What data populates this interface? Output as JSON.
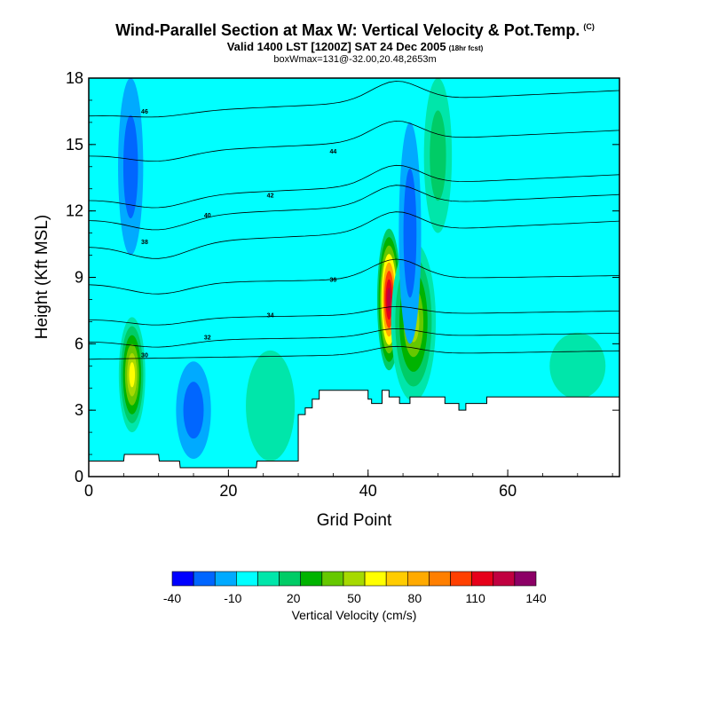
{
  "header": {
    "title": "Wind-Parallel Section at Max W: Vertical Velocity & Pot.Temp.",
    "copyright": "(C)",
    "subtitle": "Valid 1400 LST [1200Z] SAT 24 Dec 2005",
    "forecast_note": "(18hr fcst)",
    "box_info": "boxWmax=131@-32.00,20.48,2653m"
  },
  "colors": {
    "terrain": "#ffffff",
    "contour_line": "#000000",
    "frame": "#000000"
  },
  "chart_data": {
    "type": "heatmap",
    "title": "Wind-Parallel Section at Max W: Vertical Velocity & Pot.Temp.",
    "xlabel": "Grid Point",
    "ylabel": "Height (Kft MSL)",
    "xlim": [
      0,
      76
    ],
    "ylim": [
      0,
      18
    ],
    "x_ticks": [
      0,
      20,
      40,
      60
    ],
    "y_ticks": [
      0,
      3,
      6,
      9,
      12,
      15,
      18
    ],
    "x_tick_labels": [
      "0",
      "20",
      "40",
      "60"
    ],
    "y_tick_labels": [
      "0",
      "3",
      "6",
      "9",
      "12",
      "15",
      "18"
    ],
    "background_velocity_class": 3,
    "colorbar": {
      "title": "Vertical Velocity (cm/s)",
      "tick_labels": [
        "-40",
        "-10",
        "20",
        "50",
        "80",
        "110",
        "140"
      ],
      "colors": [
        "#0000ff",
        "#0066ff",
        "#00aaff",
        "#00ffff",
        "#00e6aa",
        "#00cc66",
        "#00b300",
        "#66c800",
        "#a6d900",
        "#ffff00",
        "#ffcc00",
        "#ffaa00",
        "#ff7f00",
        "#ff4000",
        "#e6001a",
        "#c00040",
        "#8c0066"
      ]
    },
    "terrain_profile": [
      [
        0,
        0.7
      ],
      [
        5,
        0.7
      ],
      [
        5.1,
        1.0
      ],
      [
        10,
        1.0
      ],
      [
        10.1,
        0.7
      ],
      [
        13,
        0.7
      ],
      [
        13.1,
        0.4
      ],
      [
        24,
        0.4
      ],
      [
        24.1,
        0.7
      ],
      [
        30,
        0.7
      ],
      [
        30,
        2.8
      ],
      [
        31,
        2.8
      ],
      [
        31,
        3.1
      ],
      [
        32,
        3.1
      ],
      [
        32,
        3.5
      ],
      [
        33,
        3.5
      ],
      [
        33,
        3.9
      ],
      [
        38,
        3.9
      ],
      [
        38,
        3.9
      ],
      [
        40,
        3.9
      ],
      [
        40,
        3.5
      ],
      [
        40.5,
        3.5
      ],
      [
        40.5,
        3.3
      ],
      [
        42,
        3.3
      ],
      [
        42,
        3.9
      ],
      [
        43,
        3.9
      ],
      [
        43,
        3.6
      ],
      [
        44.5,
        3.6
      ],
      [
        44.5,
        3.3
      ],
      [
        46,
        3.3
      ],
      [
        46,
        3.6
      ],
      [
        51,
        3.6
      ],
      [
        51,
        3.3
      ],
      [
        53,
        3.3
      ],
      [
        53,
        3.0
      ],
      [
        54,
        3.0
      ],
      [
        54,
        3.3
      ],
      [
        57,
        3.3
      ],
      [
        57,
        3.6
      ],
      [
        76,
        3.6
      ]
    ],
    "velocity_features": [
      {
        "cx": 6.2,
        "cy": 4.6,
        "rx": 1.9,
        "ry": 2.6,
        "levels": [
          4,
          5,
          6,
          7,
          8,
          9
        ]
      },
      {
        "cx": 43.0,
        "cy": 8.0,
        "rx": 1.7,
        "ry": 3.2,
        "levels": [
          5,
          6,
          7,
          9,
          11,
          13,
          14,
          15
        ]
      },
      {
        "cx": 46.5,
        "cy": 7.0,
        "rx": 3.2,
        "ry": 3.6,
        "levels": [
          4,
          5,
          6,
          7,
          8
        ]
      },
      {
        "cx": 50.0,
        "cy": 14.5,
        "rx": 2.0,
        "ry": 3.5,
        "levels": [
          4,
          5
        ]
      },
      {
        "cx": 46.0,
        "cy": 11.0,
        "rx": 1.6,
        "ry": 5.0,
        "levels": [
          2,
          1
        ]
      },
      {
        "cx": 15.0,
        "cy": 3.0,
        "rx": 2.5,
        "ry": 2.2,
        "levels": [
          2,
          1
        ]
      },
      {
        "cx": 6.0,
        "cy": 14.0,
        "rx": 1.8,
        "ry": 4.0,
        "levels": [
          2,
          1
        ]
      },
      {
        "cx": 26.0,
        "cy": 3.2,
        "rx": 3.5,
        "ry": 2.5,
        "levels": [
          4
        ]
      },
      {
        "cx": 70.0,
        "cy": 5.0,
        "rx": 4.0,
        "ry": 1.5,
        "levels": [
          4
        ]
      }
    ],
    "isentropes": [
      {
        "label": "30",
        "base_y": 5.3,
        "dip": 0.0
      },
      {
        "label": "32",
        "base_y": 6.1,
        "dip": 0.3
      },
      {
        "label": "34",
        "base_y": 7.1,
        "dip": 0.3
      },
      {
        "label": "36",
        "base_y": 8.7,
        "dip": 0.5
      },
      {
        "label": "38",
        "base_y": 10.4,
        "dip": 0.7
      },
      {
        "label": "40",
        "base_y": 11.6,
        "dip": 0.6
      },
      {
        "label": "42",
        "base_y": 12.5,
        "dip": 0.5
      },
      {
        "label": "44",
        "base_y": 14.5,
        "dip": 0.4
      },
      {
        "label": "46",
        "base_y": 16.3,
        "dip": 0.2
      }
    ]
  }
}
